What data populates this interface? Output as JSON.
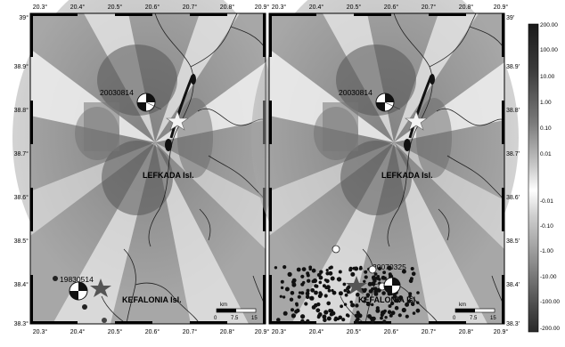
{
  "lon_ticks": [
    "20.3°",
    "20.4°",
    "20.5°",
    "20.6°",
    "20.7°",
    "20.8°",
    "20.9°"
  ],
  "lat_ticks": [
    "38.3°",
    "38.4°",
    "38.5°",
    "38.6°",
    "38.7°",
    "38.8°",
    "38.9°",
    "39°"
  ],
  "lat_ticks_right": [
    "38.3'",
    "38.4'",
    "38.5'",
    "38.6'",
    "38.7'",
    "38.8'",
    "38.9'",
    "39'"
  ],
  "colorbar_ticks": [
    "200.00",
    "100.00",
    "10.00",
    "1.00",
    "0.10",
    "0.01",
    "-0.01",
    "-0.10",
    "-1.00",
    "-10.00",
    "-100.00",
    "-200.00"
  ],
  "colors": {
    "land_line": "#222222",
    "star_light": "#f4f4f4",
    "star_dark": "#555555",
    "fault": "#111111",
    "epicenter": "#111111"
  },
  "panels": [
    {
      "island_north": "LEFKADA Isl.",
      "island_south": "KEFALONIA Isl.",
      "event_labels": [
        "20030814",
        "19830514"
      ],
      "scale": {
        "unit": "km",
        "ticks": [
          "0",
          "7.5",
          "15"
        ]
      }
    },
    {
      "island_north": "LEFKADA Isl.",
      "island_south": "KEFALONIA Isl.",
      "event_labels": [
        "20030814",
        "20070325"
      ],
      "scale": {
        "unit": "km",
        "ticks": [
          "0",
          "7.5",
          "15"
        ]
      }
    }
  ]
}
